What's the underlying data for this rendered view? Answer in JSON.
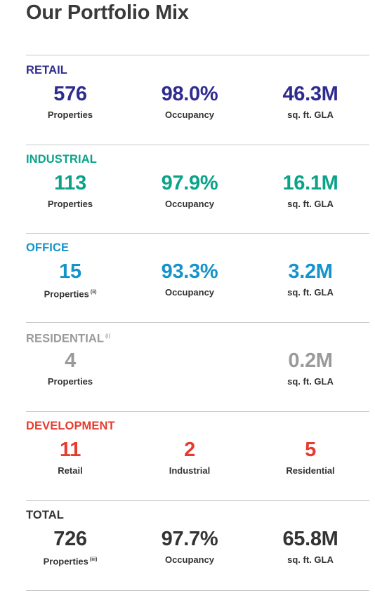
{
  "title": "Our Portfolio Mix",
  "colors": {
    "retail": "#2e2c8f",
    "industrial": "#0aa38a",
    "office": "#1593cc",
    "residential": "#9a9a9a",
    "development": "#e83a2e",
    "total": "#333333"
  },
  "sections": {
    "retail": {
      "heading": "RETAIL",
      "stats": [
        {
          "value": "576",
          "label": "Properties"
        },
        {
          "value": "98.0%",
          "label": "Occupancy"
        },
        {
          "value": "46.3M",
          "label": "sq. ft. GLA"
        }
      ]
    },
    "industrial": {
      "heading": "INDUSTRIAL",
      "stats": [
        {
          "value": "113",
          "label": "Properties"
        },
        {
          "value": "97.9%",
          "label": "Occupancy"
        },
        {
          "value": "16.1M",
          "label": "sq. ft. GLA"
        }
      ]
    },
    "office": {
      "heading": "OFFICE",
      "stats": [
        {
          "value": "15",
          "label": "Properties",
          "note": "(ii)"
        },
        {
          "value": "93.3%",
          "label": "Occupancy"
        },
        {
          "value": "3.2M",
          "label": "sq. ft. GLA"
        }
      ]
    },
    "residential": {
      "heading": "RESIDENTIAL",
      "heading_note": "(i)",
      "stats": [
        {
          "value": "4",
          "label": "Properties"
        },
        {
          "value": "0.2M",
          "label": "sq. ft. GLA"
        }
      ]
    },
    "development": {
      "heading": "DEVELOPMENT",
      "stats": [
        {
          "value": "11",
          "label": "Retail"
        },
        {
          "value": "2",
          "label": "Industrial"
        },
        {
          "value": "5",
          "label": "Residential"
        }
      ]
    },
    "total": {
      "heading": "TOTAL",
      "stats": [
        {
          "value": "726",
          "label": "Properties",
          "note": "(iii)"
        },
        {
          "value": "97.7%",
          "label": "Occupancy"
        },
        {
          "value": "65.8M",
          "label": "sq. ft. GLA"
        }
      ]
    }
  }
}
